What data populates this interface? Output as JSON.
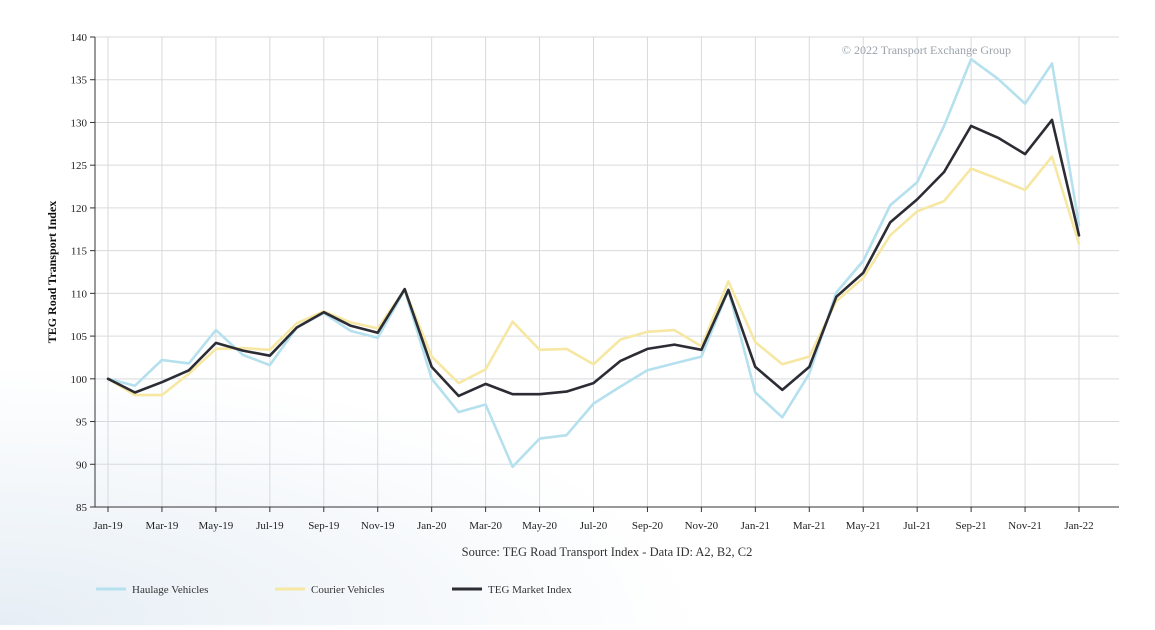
{
  "chart_data": {
    "type": "line",
    "ylabel": "TEG Road Transport Index",
    "xlabel": "Source: TEG Road Transport Index - Data ID: A2, B2, C2",
    "watermark": "© 2022 Transport Exchange Group",
    "ylim": [
      85,
      140
    ],
    "yticks": [
      85,
      90,
      95,
      100,
      105,
      110,
      115,
      120,
      125,
      130,
      135,
      140
    ],
    "grid": true,
    "legend_position": "bottom-left",
    "x_labels": [
      "Jan-19",
      "Feb-19",
      "Mar-19",
      "Apr-19",
      "May-19",
      "Jun-19",
      "Jul-19",
      "Aug-19",
      "Sep-19",
      "Oct-19",
      "Nov-19",
      "Dec-19",
      "Jan-20",
      "Feb-20",
      "Mar-20",
      "Apr-20",
      "May-20",
      "Jun-20",
      "Jul-20",
      "Aug-20",
      "Sep-20",
      "Oct-20",
      "Nov-20",
      "Dec-20",
      "Jan-21",
      "Feb-21",
      "Mar-21",
      "Apr-21",
      "May-21",
      "Jun-21",
      "Jul-21",
      "Aug-21",
      "Sep-21",
      "Oct-21",
      "Nov-21",
      "Dec-21",
      "Jan-22"
    ],
    "tick_labels": [
      "Jan-19",
      "Mar-19",
      "May-19",
      "Jul-19",
      "Sep-19",
      "Nov-19",
      "Jan-20",
      "Mar-20",
      "May-20",
      "Jul-20",
      "Sep-20",
      "Nov-20",
      "Jan-21",
      "Mar-21",
      "May-21",
      "Jul-21",
      "Sep-21",
      "Nov-21",
      "Jan-22"
    ],
    "series": [
      {
        "name": "Haulage Vehicles",
        "color": "#b5e0ee",
        "values": [
          100,
          99.2,
          102.2,
          101.8,
          105.7,
          102.8,
          101.6,
          106,
          107.7,
          105.6,
          104.8,
          110.4,
          100,
          96.1,
          97,
          89.7,
          93,
          93.4,
          97.1,
          99.1,
          101,
          101.8,
          102.6,
          110.4,
          98.4,
          95.5,
          100.6,
          110.1,
          113.8,
          120.3,
          123,
          129.6,
          137.4,
          135.1,
          132.2,
          136.9,
          118
        ]
      },
      {
        "name": "Courier Vehicles",
        "color": "#f6e7a2",
        "values": [
          100,
          98.1,
          98.1,
          100.6,
          103.5,
          103.6,
          103.4,
          106.5,
          107.9,
          106.6,
          105.9,
          110.4,
          102.6,
          99.5,
          101.1,
          106.7,
          103.4,
          103.5,
          101.7,
          104.6,
          105.5,
          105.7,
          103.8,
          111.4,
          104.3,
          101.7,
          102.6,
          109.1,
          111.8,
          116.8,
          119.6,
          120.8,
          124.6,
          123.4,
          122.1,
          126,
          115.8
        ]
      },
      {
        "name": "TEG Market Index",
        "color": "#2c2c35",
        "values": [
          100,
          98.4,
          99.6,
          101,
          104.2,
          103.3,
          102.7,
          106,
          107.8,
          106.2,
          105.4,
          110.5,
          101.4,
          98,
          99.4,
          98.2,
          98.2,
          98.5,
          99.5,
          102.1,
          103.5,
          104,
          103.4,
          110.4,
          101.4,
          98.7,
          101.4,
          109.6,
          112.4,
          118.3,
          121,
          124.2,
          129.6,
          128.2,
          126.3,
          130.3,
          116.8
        ]
      }
    ]
  }
}
